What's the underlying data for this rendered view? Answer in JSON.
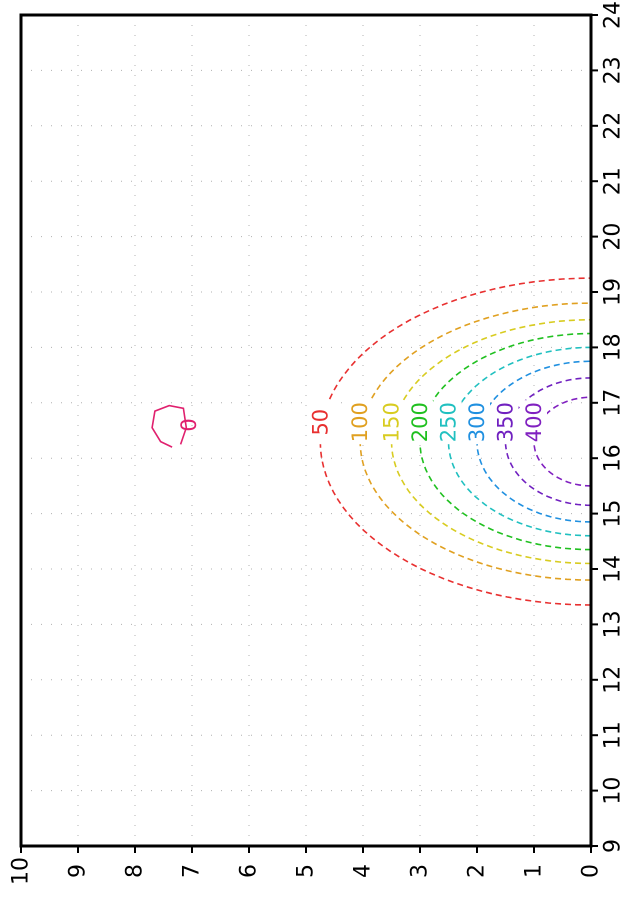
{
  "chart_data": {
    "type": "contour",
    "orientation": "rotated-90-clockwise",
    "title": "",
    "xlabel": "",
    "ylabel": "",
    "x_axis": {
      "position": "right",
      "range": [
        9,
        24
      ],
      "ticks": [
        "9",
        "10",
        "11",
        "12",
        "13",
        "14",
        "15",
        "16",
        "17",
        "18",
        "19",
        "20",
        "21",
        "22",
        "23",
        "24"
      ]
    },
    "y_axis": {
      "position": "bottom",
      "range": [
        0,
        10
      ],
      "ticks": [
        "0",
        "1",
        "2",
        "3",
        "4",
        "5",
        "6",
        "7",
        "8",
        "9",
        "10"
      ]
    },
    "grid": true,
    "center": {
      "x": 16.3,
      "y": 0
    },
    "contours": [
      {
        "level": "0",
        "color": "#e0206e",
        "style": "solid"
      },
      {
        "level": "50",
        "color": "#e83030",
        "style": "dashed",
        "rx": 2.95,
        "ry": 4.75
      },
      {
        "level": "100",
        "color": "#e0a020",
        "style": "dashed",
        "rx": 2.5,
        "ry": 4.05
      },
      {
        "level": "150",
        "color": "#d8cc20",
        "style": "dashed",
        "rx": 2.2,
        "ry": 3.5
      },
      {
        "level": "200",
        "color": "#20c020",
        "style": "dashed",
        "rx": 1.95,
        "ry": 3.0
      },
      {
        "level": "250",
        "color": "#20c0c0",
        "style": "dashed",
        "rx": 1.7,
        "ry": 2.5
      },
      {
        "level": "300",
        "color": "#2090e0",
        "style": "dashed",
        "rx": 1.45,
        "ry": 2.0
      },
      {
        "level": "350",
        "color": "#7020c0",
        "style": "dashed",
        "rx": 1.15,
        "ry": 1.5
      },
      {
        "level": "400",
        "color": "#8020c0",
        "style": "dashed",
        "rx": 0.8,
        "ry": 1.0
      }
    ]
  }
}
